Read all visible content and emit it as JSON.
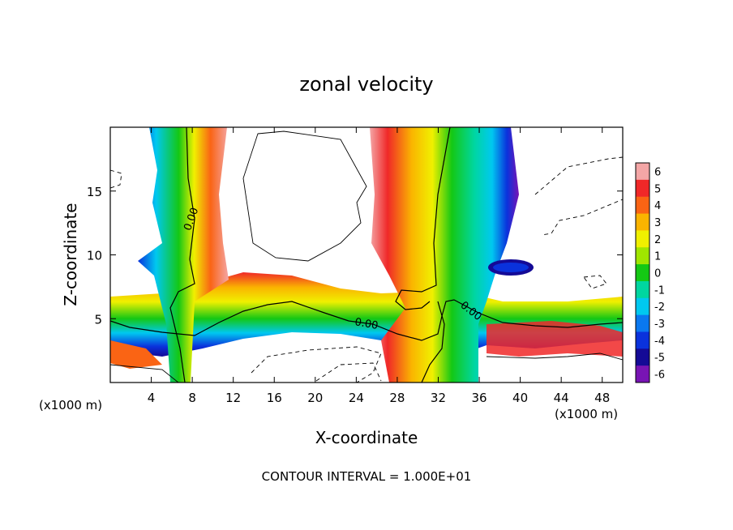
{
  "chart_data": {
    "type": "heatmap",
    "title": "zonal velocity",
    "xlabel": "X-coordinate",
    "ylabel": "Z-coordinate",
    "x_unit_left": "(x1000 m)",
    "x_unit_right": "(x1000 m)",
    "footer": "CONTOUR INTERVAL = 1.000E+01",
    "xlim": [
      0,
      50
    ],
    "ylim": [
      0,
      20
    ],
    "xticks": [
      4,
      8,
      12,
      16,
      20,
      24,
      28,
      32,
      36,
      40,
      44,
      48
    ],
    "yticks": [
      5,
      10,
      15
    ],
    "xtick_labels": [
      "4",
      "8",
      "12",
      "16",
      "20",
      "24",
      "28",
      "32",
      "36",
      "40",
      "44",
      "48"
    ],
    "ytick_labels": [
      "5",
      "10",
      "15"
    ],
    "colorbar": {
      "levels": [
        6,
        5,
        4,
        3,
        2,
        1,
        0,
        -1,
        -2,
        -3,
        -4,
        -5,
        -6
      ],
      "labels": [
        "6",
        "5",
        "4",
        "3",
        "2",
        "1",
        "0",
        "-1",
        "-2",
        "-3",
        "-4",
        "-5",
        "-6"
      ],
      "colors": [
        "#f4a6a6",
        "#f02828",
        "#fa6414",
        "#fab400",
        "#f0f000",
        "#a0e600",
        "#14c814",
        "#00d6a0",
        "#00c8f0",
        "#0a78f0",
        "#0a32dc",
        "#140a96",
        "#7814b4"
      ]
    },
    "contour_labels": [
      {
        "text": "0.00",
        "x": 7.9,
        "z": 12.8,
        "angle": -70
      },
      {
        "text": "0.00",
        "x": 25.0,
        "z": 4.6,
        "angle": 10
      },
      {
        "text": "0.00",
        "x": 35.2,
        "z": 5.6,
        "angle": 38
      }
    ]
  }
}
